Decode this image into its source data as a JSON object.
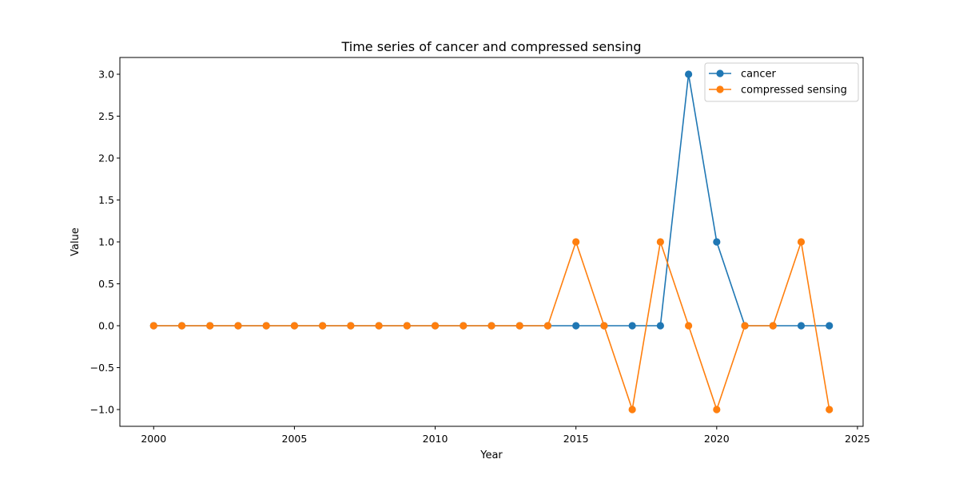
{
  "chart_data": {
    "type": "line",
    "title": "Time series of cancer and compressed sensing",
    "xlabel": "Year",
    "ylabel": "Value",
    "x": [
      2000,
      2001,
      2002,
      2003,
      2004,
      2005,
      2006,
      2007,
      2008,
      2009,
      2010,
      2011,
      2012,
      2013,
      2014,
      2015,
      2016,
      2017,
      2018,
      2019,
      2020,
      2021,
      2022,
      2023,
      2024
    ],
    "xlim": [
      1998.8,
      2025.2
    ],
    "ylim": [
      -1.2,
      3.2
    ],
    "xticks": [
      2000,
      2005,
      2010,
      2015,
      2020,
      2025
    ],
    "yticks": [
      -1.0,
      -0.5,
      0.0,
      0.5,
      1.0,
      1.5,
      2.0,
      2.5,
      3.0
    ],
    "grid": false,
    "legend_position": "upper right",
    "series": [
      {
        "name": "cancer",
        "color": "#1f77b4",
        "marker": "circle",
        "values": [
          0,
          0,
          0,
          0,
          0,
          0,
          0,
          0,
          0,
          0,
          0,
          0,
          0,
          0,
          0,
          0,
          0,
          0,
          0,
          3,
          1,
          0,
          0,
          0,
          0
        ]
      },
      {
        "name": "compressed sensing",
        "color": "#ff7f0e",
        "marker": "circle",
        "values": [
          0,
          0,
          0,
          0,
          0,
          0,
          0,
          0,
          0,
          0,
          0,
          0,
          0,
          0,
          0,
          1,
          0,
          -1,
          1,
          0,
          -1,
          0,
          0,
          1,
          -1
        ]
      }
    ]
  }
}
